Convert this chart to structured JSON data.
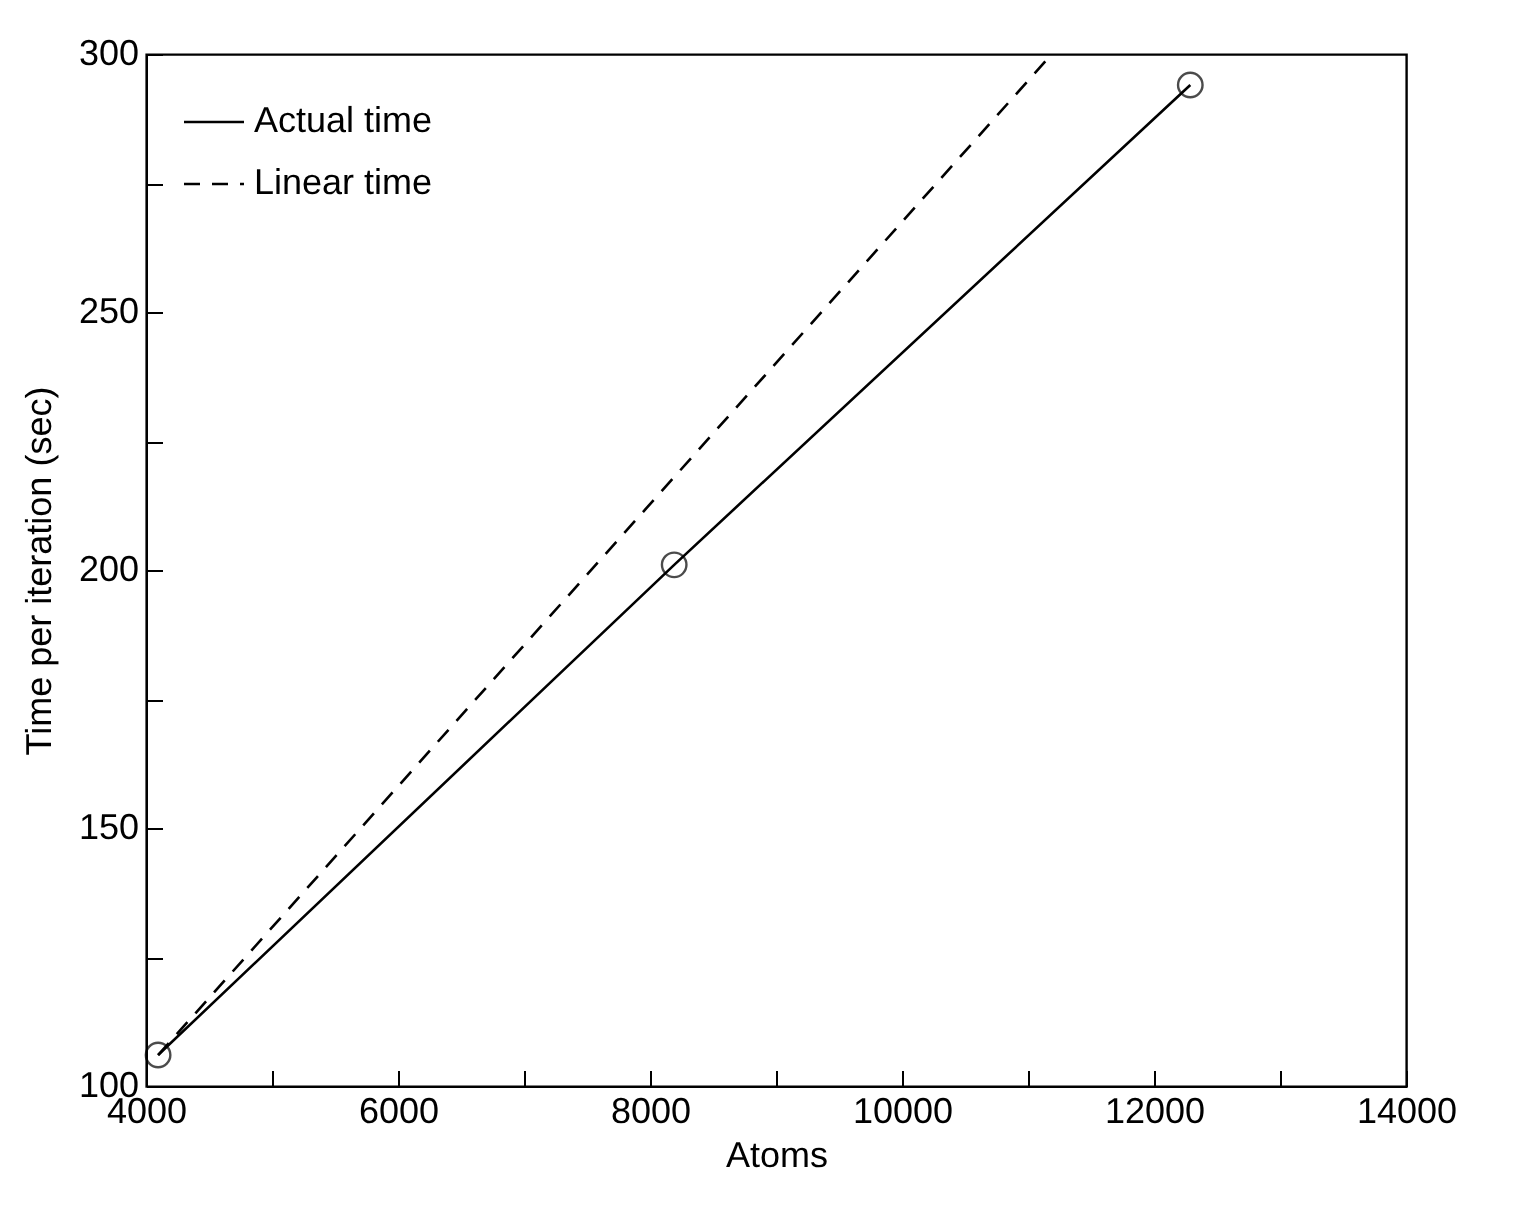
{
  "chart_data": {
    "type": "line",
    "xlabel": "Atoms",
    "ylabel": "Time per iteration (sec)",
    "xlim": [
      4000,
      14000
    ],
    "ylim": [
      100,
      300
    ],
    "xticks": [
      4000,
      {
        "value": 5000,
        "label": null
      },
      6000,
      {
        "value": 7000,
        "label": null
      },
      8000,
      {
        "value": 9000,
        "label": null
      },
      10000,
      {
        "value": 11000,
        "label": null
      },
      12000,
      {
        "value": 13000,
        "label": null
      },
      14000
    ],
    "yticks": [
      100,
      {
        "value": 125,
        "label": null
      },
      150,
      {
        "value": 175,
        "label": null
      },
      200,
      {
        "value": 225,
        "label": null
      },
      250,
      {
        "value": 275,
        "label": null
      },
      300
    ],
    "grid": false,
    "legend": "top left",
    "series": [
      {
        "name": "Actual time",
        "color": "#000000",
        "marker": "circle",
        "line_style": "solid",
        "x": [
          4096,
          8192,
          12288
        ],
        "values": [
          106,
          201,
          294
        ]
      },
      {
        "name": "Linear time",
        "color": "#000000",
        "marker": "none",
        "line_style": "dashed",
        "x": [
          4096,
          11190
        ],
        "values": [
          106,
          300
        ]
      }
    ]
  }
}
